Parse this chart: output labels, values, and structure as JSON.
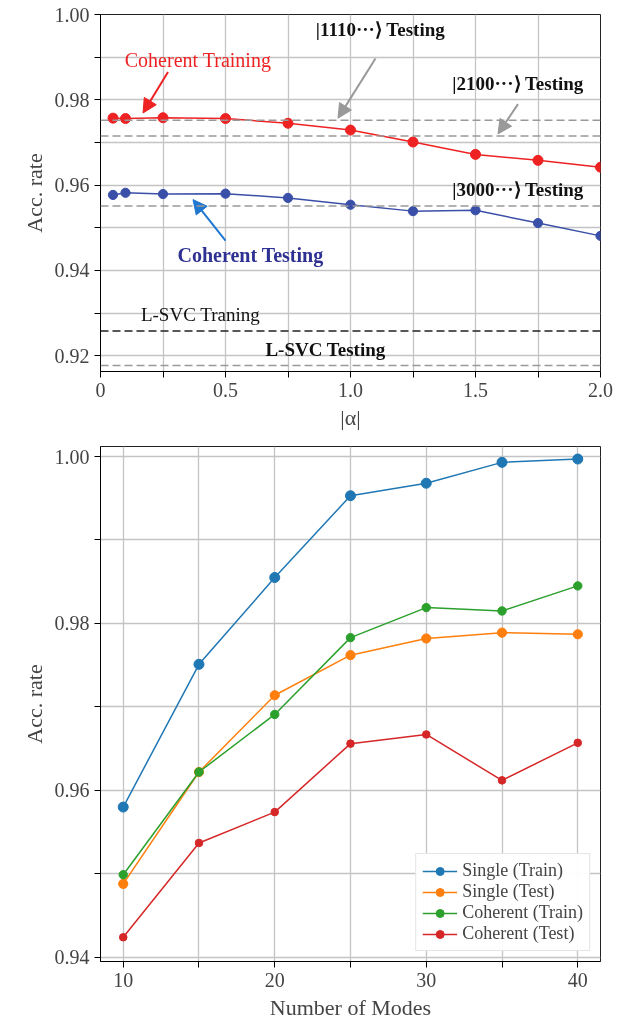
{
  "chart_data": [
    {
      "type": "line",
      "xlabel": "|α|",
      "ylabel": "Acc. rate",
      "xlim": [
        0,
        2.0
      ],
      "ylim": [
        0.9163,
        1.0
      ],
      "xticks": [
        0,
        {
          "value": 0.25,
          "label": null
        },
        0.5,
        {
          "value": 0.75,
          "label": null
        },
        {
          "value": 1.0,
          "label": "1.0"
        },
        {
          "value": 1.25,
          "label": null
        },
        1.5,
        {
          "value": 1.75,
          "label": null
        },
        {
          "value": 2.0,
          "label": "2.0"
        }
      ],
      "yticks": [
        0.92,
        {
          "value": 0.93,
          "label": null
        },
        0.94,
        {
          "value": 0.95,
          "label": null
        },
        0.96,
        {
          "value": 0.97,
          "label": null
        },
        0.98,
        {
          "value": 0.99,
          "label": null
        },
        {
          "value": 1.0,
          "label": "1.00"
        }
      ],
      "grid": true,
      "legend": false,
      "marker": "circle",
      "line_style": "solid",
      "series": [
        {
          "name": "Coherent Training",
          "color": "#ee2222",
          "x": [
            0.05,
            0.1,
            0.25,
            0.5,
            0.75,
            1.0,
            1.25,
            1.5,
            1.75,
            2.0
          ],
          "values": [
            0.9757,
            0.9756,
            0.9758,
            0.9756,
            0.9745,
            0.9729,
            0.9701,
            0.9672,
            0.9658,
            0.9642
          ]
        },
        {
          "name": "Coherent Testing",
          "color": "#3a4fa8",
          "x": [
            0.05,
            0.1,
            0.25,
            0.5,
            0.75,
            1.0,
            1.25,
            1.5,
            1.75,
            2.0
          ],
          "values": [
            0.9577,
            0.9582,
            0.9579,
            0.958,
            0.957,
            0.9554,
            0.9539,
            0.9541,
            0.9511,
            0.9481
          ]
        }
      ],
      "ref_lines": [
        {
          "axis": "y",
          "value": 0.9752,
          "label": "|1110···⟩ Testing",
          "color": "#999999",
          "line_style": "dashed"
        },
        {
          "axis": "y",
          "value": 0.9715,
          "label": "|2100···⟩ Testing",
          "color": "#999999",
          "line_style": "dashed"
        },
        {
          "axis": "y",
          "value": 0.9551,
          "label": "|3000···⟩ Testing",
          "color": "#999999",
          "line_style": "dashed"
        },
        {
          "axis": "y",
          "value": 0.9258,
          "label": "L-SVC Traning",
          "color": "#222222",
          "line_style": "dashed"
        },
        {
          "axis": "y",
          "value": 0.9177,
          "label": "L-SVC Testing",
          "color": "#999999",
          "line_style": "dashed"
        }
      ]
    },
    {
      "type": "line",
      "xlabel": "Number of Modes",
      "ylabel": "Acc. rate",
      "xlim": [
        8.5,
        41.5
      ],
      "ylim": [
        0.9395,
        1.0012
      ],
      "xticks": [
        10,
        {
          "value": 15,
          "label": null
        },
        20,
        {
          "value": 25,
          "label": null
        },
        30,
        {
          "value": 35,
          "label": null
        },
        40
      ],
      "yticks": [
        0.94,
        {
          "value": 0.95,
          "label": null
        },
        0.96,
        {
          "value": 0.97,
          "label": null
        },
        0.98,
        {
          "value": 0.99,
          "label": null
        },
        {
          "value": 1.0,
          "label": "1.00"
        }
      ],
      "grid": true,
      "legend": "bottom right",
      "marker": "circle",
      "line_style": "solid",
      "x": [
        10,
        15,
        20,
        25,
        30,
        35,
        40
      ],
      "series": [
        {
          "name": "Single (Train)",
          "color": "#1f77b4",
          "values": [
            0.958,
            0.9751,
            0.9855,
            0.9953,
            0.9968,
            0.9993,
            0.9997
          ]
        },
        {
          "name": "Single (Test)",
          "color": "#ff7f0e",
          "values": [
            0.9488,
            0.9622,
            0.9714,
            0.9762,
            0.9782,
            0.9789,
            0.9787
          ]
        },
        {
          "name": "Coherent (Train)",
          "color": "#2ca02c",
          "values": [
            0.9499,
            0.9622,
            0.9691,
            0.9783,
            0.9819,
            0.9815,
            0.9845
          ]
        },
        {
          "name": "Coherent (Test)",
          "color": "#d62728",
          "values": [
            0.9424,
            0.9537,
            0.9574,
            0.9656,
            0.9667,
            0.9612,
            0.9657
          ]
        }
      ]
    }
  ]
}
